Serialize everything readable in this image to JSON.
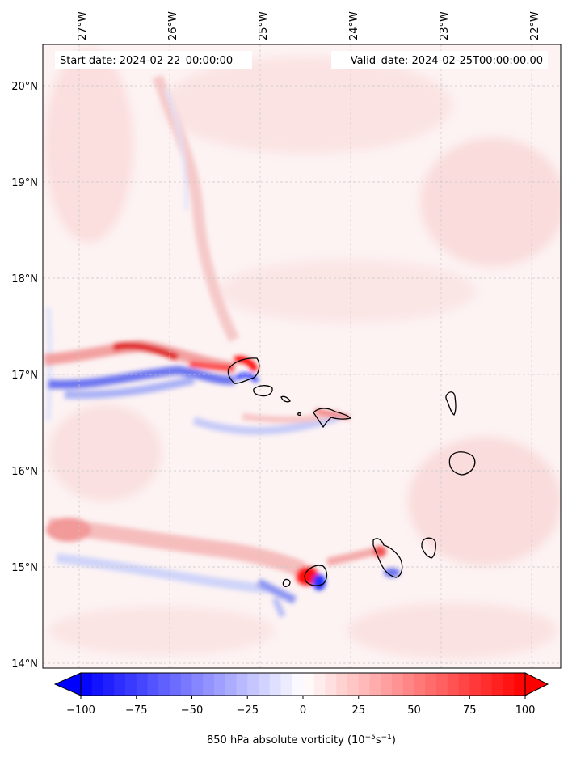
{
  "header": {
    "start_date": "Start date: 2024-02-22_00:00:00",
    "valid_date": "Valid_date: 2024-02-25T00:00:00.00"
  },
  "axes": {
    "lon_ticks": [
      "27°W",
      "26°W",
      "25°W",
      "24°W",
      "23°W",
      "22°W"
    ],
    "lat_ticks": [
      "20°N",
      "19°N",
      "18°N",
      "17°N",
      "16°N",
      "15°N",
      "14°N"
    ]
  },
  "colorbar": {
    "tick_labels": [
      "−100",
      "−75",
      "−50",
      "−25",
      "0",
      "25",
      "50",
      "75",
      "100"
    ],
    "label_main": "850 hPa absolute vorticity (10",
    "label_exp1": "−5",
    "label_mid": "s",
    "label_exp2": "−1",
    "label_end": ")",
    "min_color": "#0000ff",
    "mid_color": "#ffffff",
    "max_color": "#ff0000"
  },
  "islands": [
    "Santo Antão",
    "São Vicente",
    "Santa Luzia",
    "São Nicolau",
    "Sal",
    "Boa Vista",
    "Maio",
    "Santiago",
    "Fogo",
    "Brava"
  ]
}
